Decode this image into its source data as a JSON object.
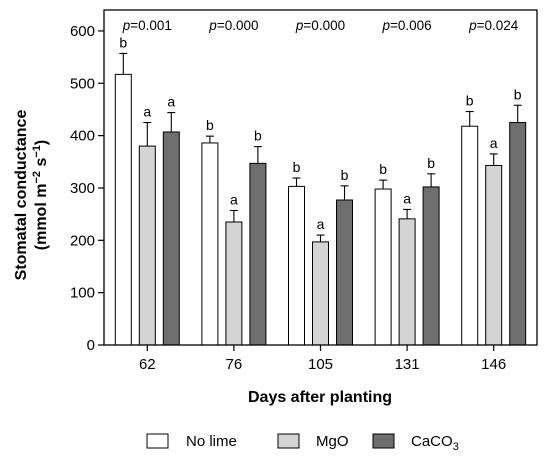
{
  "chart_data": {
    "type": "bar",
    "categories": [
      "62",
      "76",
      "105",
      "131",
      "146"
    ],
    "xlabel": "Days after planting",
    "ylabel_line1": "Stomatal conductance",
    "ylabel_line2_prefix": "(mmol m",
    "ylabel_sup1": "−2",
    "ylabel_mid": " s",
    "ylabel_sup2": "−1",
    "ylabel_suffix": ")",
    "ylim": [
      0,
      640
    ],
    "yticks": [
      0,
      100,
      200,
      300,
      400,
      500,
      600
    ],
    "p_prefix": "p",
    "p_values": [
      "=0.001",
      "=0.000",
      "=0.000",
      "=0.006",
      "=0.024"
    ],
    "series": [
      {
        "name": "No lime",
        "color": "#ffffff",
        "values": [
          517,
          386,
          303,
          298,
          418
        ],
        "errors": [
          40,
          13,
          16,
          17,
          28
        ],
        "letters": [
          "b",
          "b",
          "b",
          "b",
          "b"
        ]
      },
      {
        "name": "MgO",
        "color": "#d4d4d4",
        "values": [
          380,
          235,
          197,
          241,
          343
        ],
        "errors": [
          45,
          22,
          13,
          18,
          22
        ],
        "letters": [
          "a",
          "a",
          "a",
          "a",
          "a"
        ]
      },
      {
        "name": "CaCO3",
        "legend_base": "CaCO",
        "legend_sub": "3",
        "color": "#6e6e6e",
        "values": [
          407,
          347,
          277,
          302,
          425
        ],
        "errors": [
          37,
          32,
          27,
          25,
          33
        ],
        "letters": [
          "a",
          "b",
          "b",
          "b",
          "b"
        ]
      }
    ]
  }
}
